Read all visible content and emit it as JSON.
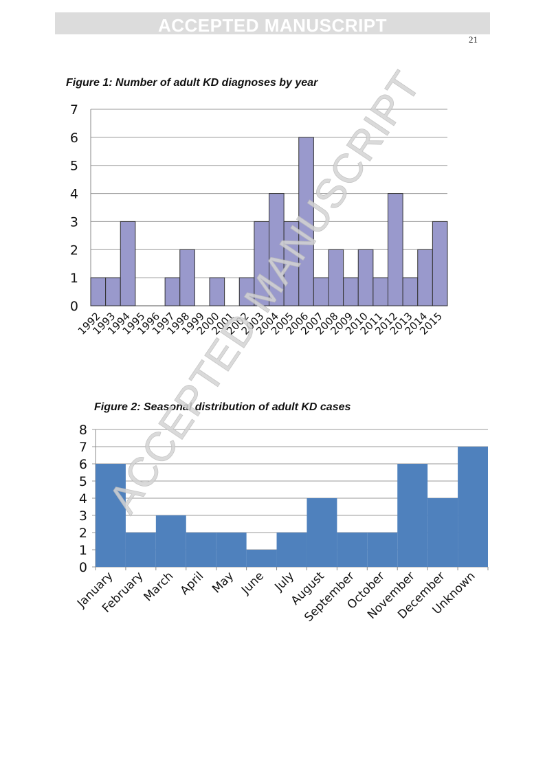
{
  "header": {
    "banner": "ACCEPTED MANUSCRIPT",
    "page_number": "21"
  },
  "watermark": "ACCEPTED MANUSCRIPT",
  "chart_data": [
    {
      "type": "bar",
      "title": "Figure 1: Number of adult KD diagnoses by year",
      "categories": [
        "1992",
        "1993",
        "1994",
        "1995",
        "1996",
        "1997",
        "1998",
        "1999",
        "2000",
        "2001",
        "2002",
        "2003",
        "2004",
        "2005",
        "2006",
        "2007",
        "2008",
        "2009",
        "2010",
        "2011",
        "2012",
        "2013",
        "2014",
        "2015"
      ],
      "values": [
        1,
        1,
        3,
        0,
        0,
        1,
        2,
        0,
        1,
        0,
        1,
        3,
        4,
        3,
        6,
        1,
        2,
        1,
        2,
        1,
        4,
        1,
        2,
        3
      ],
      "ylim": [
        0,
        7
      ],
      "yticks": [
        0,
        1,
        2,
        3,
        4,
        5,
        6,
        7
      ],
      "grid": true,
      "color": "#9999cc"
    },
    {
      "type": "area",
      "title": "Figure 2: Seasonal distribution of adult KD cases",
      "categories": [
        "January",
        "February",
        "March",
        "April",
        "May",
        "June",
        "July",
        "August",
        "September",
        "October",
        "November",
        "December",
        "Unknown"
      ],
      "values": [
        6,
        2,
        3,
        2,
        2,
        1,
        2,
        4,
        2,
        2,
        6,
        4,
        7
      ],
      "ylim": [
        0,
        8
      ],
      "yticks": [
        0,
        1,
        2,
        3,
        4,
        5,
        6,
        7,
        8
      ],
      "grid": true,
      "color": "#4f81bd"
    }
  ]
}
